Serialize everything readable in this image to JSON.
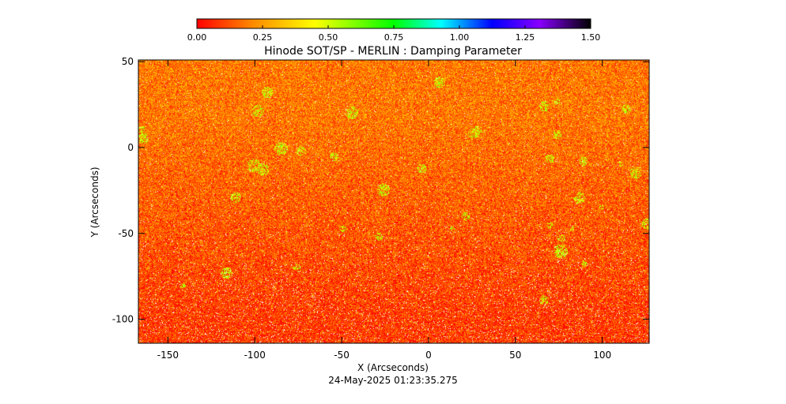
{
  "chart_data": {
    "type": "heatmap",
    "title": "Hinode SOT/SP - MERLIN : Damping Parameter",
    "xlabel": "X (Arcseconds)",
    "ylabel": "Y (Arcseconds)",
    "xlim": [
      -167,
      127
    ],
    "ylim": [
      -114,
      51
    ],
    "x_ticks": [
      -150,
      -100,
      -50,
      0,
      50,
      100
    ],
    "y_ticks": [
      -100,
      -50,
      0,
      50
    ],
    "colorbar": {
      "range": [
        0.0,
        1.5
      ],
      "ticks": [
        "0.00",
        "0.25",
        "0.50",
        "0.75",
        "1.00",
        "1.25",
        "1.50"
      ],
      "colors": [
        "#ff0000",
        "#ff8800",
        "#ffff00",
        "#00ff00",
        "#00ffff",
        "#0000ff",
        "#8800ff",
        "#000000"
      ]
    },
    "value_distribution": {
      "typical_range": [
        0.0,
        0.35
      ],
      "upper_region_mean": 0.18,
      "lower_region_mean": 0.08,
      "sparse_patches_value": 0.6,
      "invalid_pixels": "white speckle"
    }
  },
  "timestamp": "24-May-2025 01:23:35.275"
}
